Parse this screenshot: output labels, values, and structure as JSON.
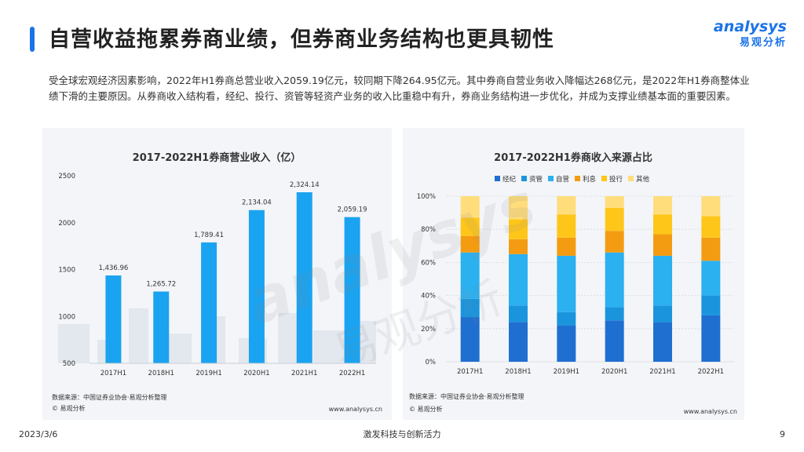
{
  "header": {
    "title": "自营收益拖累券商业绩，但券商业务结构也更具韧性",
    "logo_en": "analysys",
    "logo_cn": "易观分析"
  },
  "intro": "受全球宏观经济因素影响，2022年H1券商总营业收入2059.19亿元，较同期下降264.95亿元。其中券商自营业务收入降幅达268亿元，是2022年H1券商整体业绩下滑的主要原因。从券商收入结构看，经纪、投行、资管等轻资产业务的收入比重稳中有升，券商业务结构进一步优化，并成为支撑业绩基本面的重要因素。",
  "left_panel": {
    "source": "数据来源：中国证券业协会·易观分析整理",
    "copyright": "© 易观分析",
    "url": "www.analysys.cn"
  },
  "right_panel": {
    "source": "数据来源：中国证券业协会·易观分析整理",
    "copyright": "© 易观分析",
    "url": "www.analysys.cn"
  },
  "watermark": {
    "en": "analysys",
    "cn": "易观分析"
  },
  "footer": {
    "date": "2023/3/6",
    "slogan": "激发科技与创新活力",
    "page": "9"
  },
  "chart_data": [
    {
      "type": "bar",
      "title": "2017-2022H1券商营业收入（亿）",
      "categories": [
        "2017H1",
        "2018H1",
        "2019H1",
        "2020H1",
        "2021H1",
        "2022H1"
      ],
      "values": [
        1436.96,
        1265.72,
        1789.41,
        2134.04,
        2324.14,
        2059.19
      ],
      "value_labels": [
        "1,436.96",
        "1,265.72",
        "1,789.41",
        "2,134.04",
        "2,324.14",
        "2,059.19"
      ],
      "yticks": [
        "500",
        "1000",
        "1500",
        "2000",
        "2500"
      ],
      "ylim": [
        500,
        2500
      ],
      "grid": false,
      "color": "#1aa3f0"
    },
    {
      "type": "bar",
      "stacked": true,
      "title": "2017-2022H1券商收入来源占比",
      "categories": [
        "2017H1",
        "2018H1",
        "2019H1",
        "2020H1",
        "2021H1",
        "2022H1"
      ],
      "yticks": [
        "0%",
        "20%",
        "40%",
        "60%",
        "80%",
        "100%"
      ],
      "ylim": [
        0,
        100
      ],
      "grid": true,
      "legend_position": "top",
      "series": [
        {
          "name": "经纪",
          "color": "#1f6fd1",
          "values": [
            27,
            24,
            22,
            25,
            24,
            28
          ]
        },
        {
          "name": "资管",
          "color": "#1a95dd",
          "values": [
            11,
            10,
            8,
            8,
            10,
            12
          ]
        },
        {
          "name": "自营",
          "color": "#2bb0f0",
          "values": [
            28,
            31,
            34,
            33,
            30,
            21
          ]
        },
        {
          "name": "利息",
          "color": "#f39c12",
          "values": [
            10,
            9,
            11,
            13,
            13,
            14
          ]
        },
        {
          "name": "投行",
          "color": "#ffc61a",
          "values": [
            11,
            12,
            14,
            14,
            12,
            13
          ]
        },
        {
          "name": "其他",
          "color": "#ffdd7a",
          "values": [
            13,
            14,
            11,
            7,
            11,
            12
          ]
        }
      ]
    }
  ]
}
